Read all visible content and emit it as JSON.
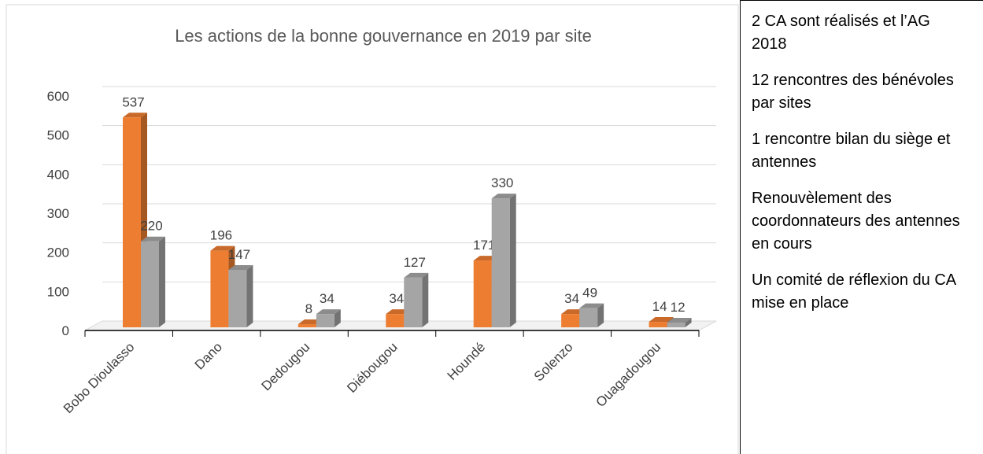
{
  "chart_data": {
    "type": "bar3d",
    "title": "Les actions de la bonne gouvernance en 2019 par site",
    "categories": [
      "Bobo Dioulasso",
      "Dano",
      "Dedougou",
      "Diébougou",
      "Houndé",
      "Solenzo",
      "Ouagadougou"
    ],
    "series": [
      {
        "color": "#ed7d31",
        "values": [
          537,
          196,
          8,
          34,
          171,
          34,
          14
        ]
      },
      {
        "color": "#a5a5a5",
        "values": [
          220,
          147,
          34,
          127,
          330,
          49,
          12
        ]
      }
    ],
    "ylim": [
      0,
      600
    ],
    "yticks": [
      0,
      100,
      200,
      300,
      400,
      500,
      600
    ],
    "grid": true
  },
  "notes": [
    "2 CA sont réalisés et l’AG 2018",
    "12 rencontres des bénévoles par sites",
    "1 rencontre bilan du siège et antennes",
    "Renouvèlement des coordonnateurs des antennes en cours",
    "Un comité de réflexion du CA mise en place"
  ]
}
